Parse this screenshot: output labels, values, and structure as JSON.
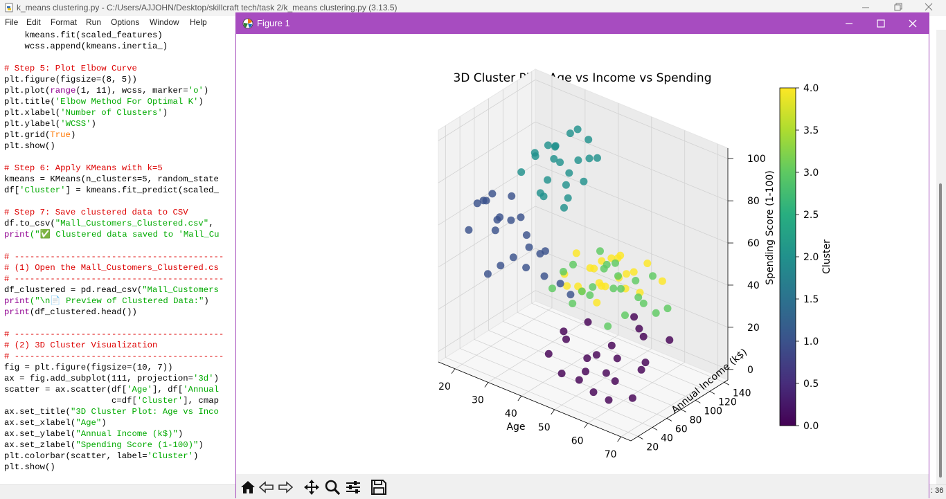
{
  "idle": {
    "title": "k_means clustering.py - C:/Users/AJJOHN/Desktop/skillcraft tech/task 2/k_means clustering.py (3.13.5)",
    "menu": [
      "File",
      "Edit",
      "Format",
      "Run",
      "Options",
      "Window",
      "Help"
    ],
    "status_col": ": 36",
    "code_lines": [
      [
        [
          "",
          "    kmeans.fit(scaled_features)"
        ]
      ],
      [
        [
          "",
          "    wcss.append(kmeans.inertia_)"
        ]
      ],
      [
        [
          "",
          ""
        ]
      ],
      [
        [
          "cmt",
          "# Step 5: Plot Elbow Curve"
        ]
      ],
      [
        [
          "",
          "plt.figure(figsize=(8, 5))"
        ]
      ],
      [
        [
          "",
          "plt.plot("
        ],
        [
          "bi",
          "range"
        ],
        [
          "",
          "(1, 11), wcss, marker="
        ],
        [
          "str",
          "'o'"
        ],
        [
          "",
          ")"
        ]
      ],
      [
        [
          "",
          "plt.title("
        ],
        [
          "str",
          "'Elbow Method For Optimal K'"
        ],
        [
          "",
          ")"
        ]
      ],
      [
        [
          "",
          "plt.xlabel("
        ],
        [
          "str",
          "'Number of Clusters'"
        ],
        [
          "",
          ")"
        ]
      ],
      [
        [
          "",
          "plt.ylabel("
        ],
        [
          "str",
          "'WCSS'"
        ],
        [
          "",
          ")"
        ]
      ],
      [
        [
          "",
          "plt.grid("
        ],
        [
          "kw",
          "True"
        ],
        [
          "",
          ")"
        ]
      ],
      [
        [
          "",
          "plt.show()"
        ]
      ],
      [
        [
          "",
          ""
        ]
      ],
      [
        [
          "cmt",
          "# Step 6: Apply KMeans with k=5"
        ]
      ],
      [
        [
          "",
          "kmeans = KMeans(n_clusters=5, random_state"
        ]
      ],
      [
        [
          "",
          "df["
        ],
        [
          "str",
          "'Cluster'"
        ],
        [
          "",
          "] = kmeans.fit_predict(scaled_"
        ]
      ],
      [
        [
          "",
          ""
        ]
      ],
      [
        [
          "cmt",
          "# Step 7: Save clustered data to CSV"
        ]
      ],
      [
        [
          "",
          "df.to_csv("
        ],
        [
          "str",
          "\"Mall_Customers_Clustered.csv\""
        ],
        [
          "",
          ","
        ]
      ],
      [
        [
          "bi",
          "print"
        ],
        [
          "str",
          "(\"✅ Clustered data saved to 'Mall_Cu"
        ]
      ],
      [
        [
          "",
          ""
        ]
      ],
      [
        [
          "cmt",
          "# -----------------------------------------"
        ]
      ],
      [
        [
          "cmt",
          "# (1) Open the Mall_Customers_Clustered.cs"
        ]
      ],
      [
        [
          "cmt",
          "# -----------------------------------------"
        ]
      ],
      [
        [
          "",
          "df_clustered = pd.read_csv("
        ],
        [
          "str",
          "\"Mall_Customers"
        ]
      ],
      [
        [
          "bi",
          "print"
        ],
        [
          "str",
          "(\"\\n📄 Preview of Clustered Data:\""
        ],
        [
          "",
          ")"
        ]
      ],
      [
        [
          "bi",
          "print"
        ],
        [
          "",
          "(df_clustered.head())"
        ]
      ],
      [
        [
          "",
          ""
        ]
      ],
      [
        [
          "cmt",
          "# -----------------------------------------"
        ]
      ],
      [
        [
          "cmt",
          "# (2) 3D Cluster Visualization"
        ]
      ],
      [
        [
          "cmt",
          "# -----------------------------------------"
        ]
      ],
      [
        [
          "",
          "fig = plt.figure(figsize=(10, 7))"
        ]
      ],
      [
        [
          "",
          "ax = fig.add_subplot(111, projection="
        ],
        [
          "str",
          "'3d'"
        ],
        [
          "",
          ")"
        ]
      ],
      [
        [
          "",
          "scatter = ax.scatter(df["
        ],
        [
          "str",
          "'Age'"
        ],
        [
          "",
          "], df["
        ],
        [
          "str",
          "'Annual"
        ]
      ],
      [
        [
          "",
          "                     c=df["
        ],
        [
          "str",
          "'Cluster'"
        ],
        [
          "",
          "], cmap"
        ]
      ],
      [
        [
          "",
          "ax.set_title("
        ],
        [
          "str",
          "\"3D Cluster Plot: Age vs Inco"
        ]
      ],
      [
        [
          "",
          "ax.set_xlabel("
        ],
        [
          "str",
          "\"Age\""
        ],
        [
          "",
          ")"
        ]
      ],
      [
        [
          "",
          "ax.set_ylabel("
        ],
        [
          "str",
          "\"Annual Income (k$)\""
        ],
        [
          "",
          ")"
        ]
      ],
      [
        [
          "",
          "ax.set_zlabel("
        ],
        [
          "str",
          "\"Spending Score (1-100)\""
        ],
        [
          "",
          ")"
        ]
      ],
      [
        [
          "",
          "plt.colorbar(scatter, label="
        ],
        [
          "str",
          "'Cluster'"
        ],
        [
          "",
          ")"
        ]
      ],
      [
        [
          "",
          "plt.show()"
        ]
      ]
    ]
  },
  "figure": {
    "window_title": "Figure 1",
    "accent": "#a74cc0",
    "toolbar": [
      "home-icon",
      "back-icon",
      "forward-icon",
      "pan-icon",
      "zoom-icon",
      "configure-subplots-icon",
      "save-icon"
    ]
  },
  "chart_data": {
    "type": "scatter",
    "title": "3D Cluster Plot: Age vs Income vs Spending",
    "xlabel": "Age",
    "ylabel": "Annual Income (k$)",
    "zlabel": "Spending Score (1-100)",
    "xlim": [
      15,
      73
    ],
    "ylim": [
      10,
      145
    ],
    "zlim": [
      -5,
      105
    ],
    "xticks": [
      20,
      30,
      40,
      50,
      60,
      70
    ],
    "yticks": [
      20,
      40,
      60,
      80,
      100,
      120,
      140
    ],
    "zticks": [
      0,
      20,
      40,
      60,
      80,
      100
    ],
    "colormap": "viridis",
    "colorbar": {
      "label": "Cluster",
      "min": 0.0,
      "max": 4.0,
      "ticks": [
        "0.0",
        "0.5",
        "1.0",
        "1.5",
        "2.0",
        "2.5",
        "3.0",
        "3.5",
        "4.0"
      ]
    },
    "cluster_colors": [
      "#440154",
      "#3b528b",
      "#21918c",
      "#5ec962",
      "#fde725"
    ],
    "clusters": [
      {
        "cluster": 0,
        "points": [
          [
            45,
            25,
            15
          ],
          [
            50,
            20,
            10
          ],
          [
            55,
            30,
            12
          ],
          [
            60,
            18,
            8
          ],
          [
            47,
            40,
            20
          ],
          [
            52,
            35,
            5
          ],
          [
            65,
            25,
            15
          ],
          [
            58,
            45,
            10
          ],
          [
            62,
            30,
            3
          ],
          [
            43,
            55,
            18
          ],
          [
            49,
            60,
            8
          ],
          [
            54,
            50,
            15
          ],
          [
            67,
            40,
            5
          ],
          [
            57,
            65,
            12
          ],
          [
            46,
            75,
            20
          ],
          [
            51,
            85,
            10
          ],
          [
            59,
            95,
            5
          ],
          [
            63,
            110,
            15
          ],
          [
            53,
            120,
            8
          ],
          [
            48,
            130,
            12
          ],
          [
            56,
            100,
            18
          ],
          [
            61,
            80,
            6
          ]
        ]
      },
      {
        "cluster": 1,
        "points": [
          [
            22,
            20,
            60
          ],
          [
            25,
            18,
            75
          ],
          [
            28,
            25,
            80
          ],
          [
            30,
            20,
            65
          ],
          [
            33,
            28,
            70
          ],
          [
            35,
            22,
            55
          ],
          [
            38,
            30,
            60
          ],
          [
            24,
            35,
            72
          ],
          [
            27,
            40,
            65
          ],
          [
            31,
            38,
            78
          ],
          [
            34,
            45,
            60
          ],
          [
            37,
            50,
            52
          ],
          [
            40,
            42,
            45
          ],
          [
            23,
            55,
            58
          ],
          [
            29,
            60,
            62
          ],
          [
            32,
            18,
            50
          ],
          [
            36,
            35,
            48
          ],
          [
            26,
            28,
            40
          ],
          [
            39,
            48,
            55
          ],
          [
            42,
            55,
            40
          ],
          [
            44,
            60,
            35
          ],
          [
            21,
            45,
            68
          ]
        ]
      },
      {
        "cluster": 2,
        "points": [
          [
            27,
            70,
            80
          ],
          [
            30,
            75,
            90
          ],
          [
            32,
            78,
            70
          ],
          [
            35,
            80,
            95
          ],
          [
            28,
            85,
            85
          ],
          [
            31,
            88,
            75
          ],
          [
            33,
            90,
            92
          ],
          [
            36,
            95,
            80
          ],
          [
            29,
            98,
            88
          ],
          [
            34,
            100,
            72
          ],
          [
            37,
            103,
            85
          ],
          [
            30,
            110,
            78
          ],
          [
            32,
            115,
            92
          ],
          [
            35,
            120,
            70
          ],
          [
            38,
            125,
            82
          ],
          [
            31,
            130,
            90
          ],
          [
            33,
            137,
            76
          ],
          [
            39,
            108,
            95
          ],
          [
            36,
            88,
            65
          ],
          [
            40,
            75,
            75
          ],
          [
            28,
            92,
            66
          ],
          [
            34,
            83,
            88
          ]
        ]
      },
      {
        "cluster": 3,
        "points": [
          [
            45,
            30,
            45
          ],
          [
            50,
            35,
            40
          ],
          [
            55,
            40,
            50
          ],
          [
            60,
            38,
            35
          ],
          [
            48,
            45,
            55
          ],
          [
            52,
            50,
            42
          ],
          [
            58,
            55,
            48
          ],
          [
            63,
            48,
            40
          ],
          [
            66,
            60,
            45
          ],
          [
            47,
            62,
            38
          ],
          [
            53,
            65,
            52
          ],
          [
            57,
            70,
            44
          ],
          [
            61,
            72,
            50
          ],
          [
            68,
            68,
            40
          ],
          [
            49,
            78,
            55
          ],
          [
            54,
            80,
            46
          ],
          [
            59,
            85,
            38
          ],
          [
            64,
            82,
            52
          ],
          [
            70,
            75,
            42
          ],
          [
            51,
            90,
            48
          ],
          [
            56,
            55,
            58
          ],
          [
            44,
            50,
            48
          ]
        ]
      },
      {
        "cluster": 4,
        "points": [
          [
            40,
            70,
            40
          ],
          [
            43,
            75,
            35
          ],
          [
            46,
            78,
            45
          ],
          [
            49,
            80,
            38
          ],
          [
            42,
            85,
            30
          ],
          [
            45,
            88,
            42
          ],
          [
            48,
            90,
            35
          ],
          [
            51,
            95,
            40
          ],
          [
            44,
            100,
            32
          ],
          [
            47,
            103,
            45
          ],
          [
            50,
            110,
            38
          ],
          [
            53,
            115,
            30
          ],
          [
            46,
            120,
            42
          ],
          [
            49,
            125,
            35
          ],
          [
            52,
            130,
            40
          ],
          [
            55,
            137,
            32
          ],
          [
            41,
            82,
            48
          ],
          [
            45,
            92,
            25
          ],
          [
            39,
            78,
            32
          ],
          [
            48,
            118,
            28
          ],
          [
            50,
            98,
            48
          ],
          [
            43,
            108,
            40
          ]
        ]
      }
    ]
  }
}
